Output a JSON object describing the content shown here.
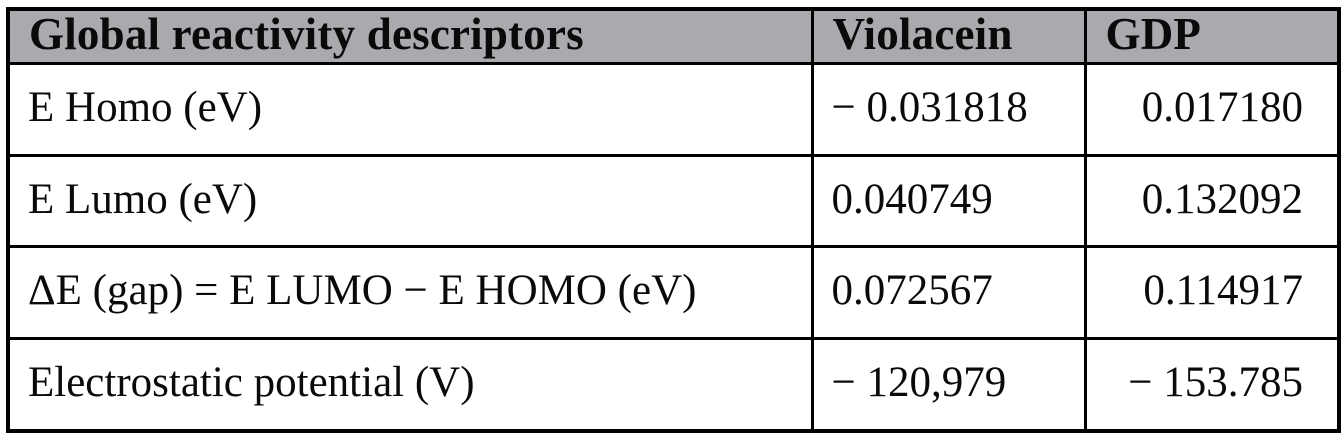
{
  "colors": {
    "page_bg": "#ffffff",
    "header_bg": "#a8aaad",
    "body_bg": "#ffffff",
    "border": "#000000",
    "text": "#0a0a0a"
  },
  "table": {
    "title": "Global reactivity descriptors",
    "headers": [
      "Global reactivity descriptors",
      "Violacein",
      "GDP"
    ],
    "rows": [
      {
        "cells": [
          "E Homo (eV)",
          "− 0.031818",
          "0.017180"
        ]
      },
      {
        "cells": [
          "E Lumo (eV)",
          "0.040749",
          "0.132092"
        ]
      },
      {
        "cells": [
          "ΔE (gap) = E LUMO − E HOMO (eV)",
          "0.072567",
          "0.114917"
        ]
      },
      {
        "cells": [
          "Electrostatic potential (V)",
          "− 120,979",
          "− 153.785"
        ]
      }
    ]
  },
  "chart_data": {
    "type": "table",
    "title": "Global reactivity descriptors",
    "columns": [
      "Global reactivity descriptors",
      "Violacein",
      "GDP"
    ],
    "rows": [
      [
        "E Homo (eV)",
        "− 0.031818",
        "0.017180"
      ],
      [
        "E Lumo (eV)",
        "0.040749",
        "0.132092"
      ],
      [
        "ΔE (gap) = E LUMO − E HOMO (eV)",
        "0.072567",
        "0.114917"
      ],
      [
        "Electrostatic potential (V)",
        "− 120,979",
        "− 153.785"
      ]
    ]
  }
}
